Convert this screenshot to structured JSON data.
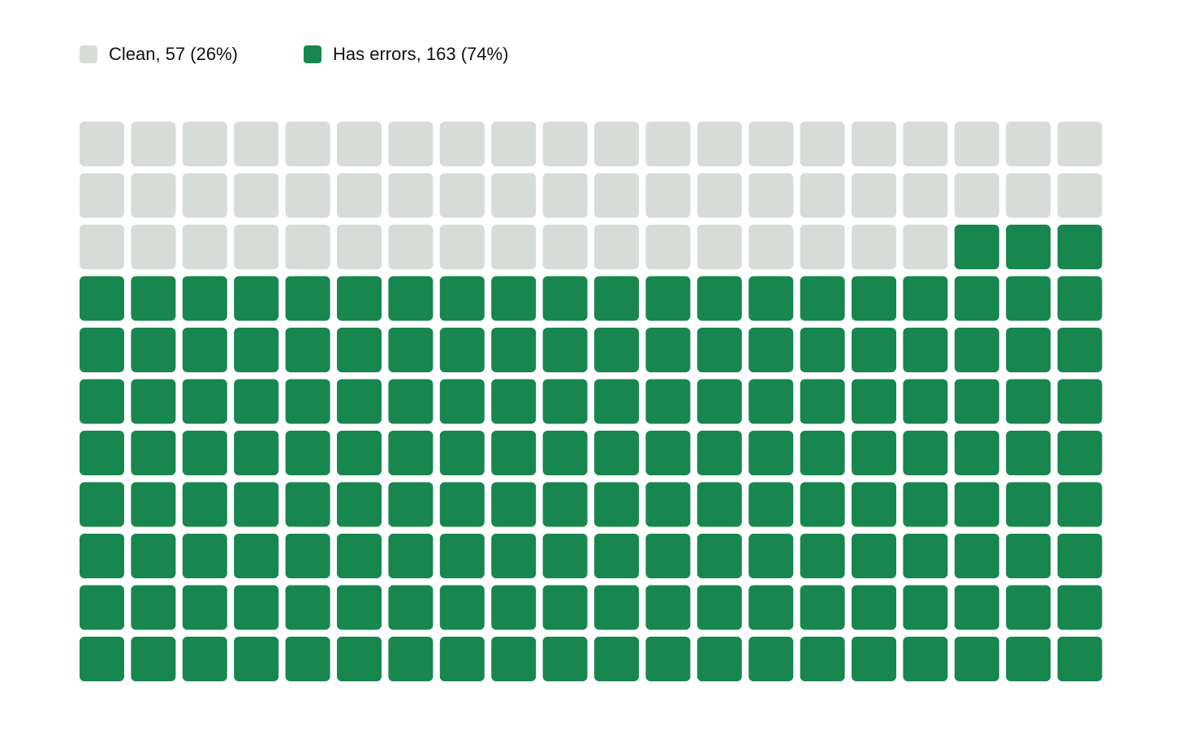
{
  "chart_data": {
    "type": "waffle",
    "series": [
      {
        "name": "Clean, 57 (26%)",
        "value": 57,
        "color": "#d8dcd9"
      },
      {
        "name": "Has errors, 163 (74%)",
        "value": 163,
        "color": "#17874f"
      }
    ]
  }
}
